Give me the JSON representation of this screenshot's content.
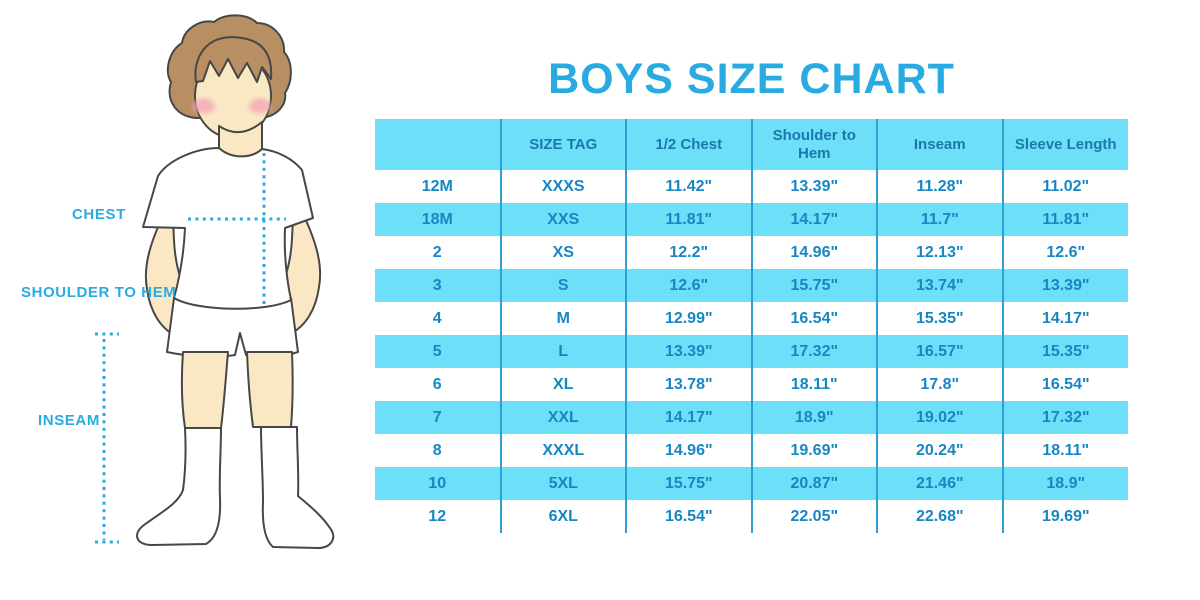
{
  "title": "BOYS SIZE CHART",
  "figure": {
    "illustration": "boy-with-measurement-lines",
    "labels": [
      {
        "text": "CHEST"
      },
      {
        "text": "SHOULDER TO HEM"
      },
      {
        "text": "INSEAM"
      }
    ]
  },
  "colors": {
    "accent_blue": "#29ABE2",
    "table_fill": "#6EDFF8",
    "table_divider": "#2D9FD1",
    "cell_text": "#1687C2",
    "header_text": "#1A78AD",
    "skin": "#FAE7C4",
    "hair": "#B78F62",
    "blush": "#F2A7B7"
  },
  "chart_data": {
    "type": "table",
    "title": "BOYS SIZE CHART",
    "columns": [
      "",
      "SIZE TAG",
      "1/2 Chest",
      "Shoulder to Hem",
      "Inseam",
      "Sleeve Length"
    ],
    "rows": [
      [
        "12M",
        "XXXS",
        "11.42\"",
        "13.39\"",
        "11.28\"",
        "11.02\""
      ],
      [
        "18M",
        "XXS",
        "11.81\"",
        "14.17\"",
        "11.7\"",
        "11.81\""
      ],
      [
        "2",
        "XS",
        "12.2\"",
        "14.96\"",
        "12.13\"",
        "12.6\""
      ],
      [
        "3",
        "S",
        "12.6\"",
        "15.75\"",
        "13.74\"",
        "13.39\""
      ],
      [
        "4",
        "M",
        "12.99\"",
        "16.54\"",
        "15.35\"",
        "14.17\""
      ],
      [
        "5",
        "L",
        "13.39\"",
        "17.32\"",
        "16.57\"",
        "15.35\""
      ],
      [
        "6",
        "XL",
        "13.78\"",
        "18.11\"",
        "17.8\"",
        "16.54\""
      ],
      [
        "7",
        "XXL",
        "14.17\"",
        "18.9\"",
        "19.02\"",
        "17.32\""
      ],
      [
        "8",
        "XXXL",
        "14.96\"",
        "19.69\"",
        "20.24\"",
        "18.11\""
      ],
      [
        "10",
        "5XL",
        "15.75\"",
        "20.87\"",
        "21.46\"",
        "18.9\""
      ],
      [
        "12",
        "6XL",
        "16.54\"",
        "22.05\"",
        "22.68\"",
        "19.69\""
      ]
    ]
  }
}
